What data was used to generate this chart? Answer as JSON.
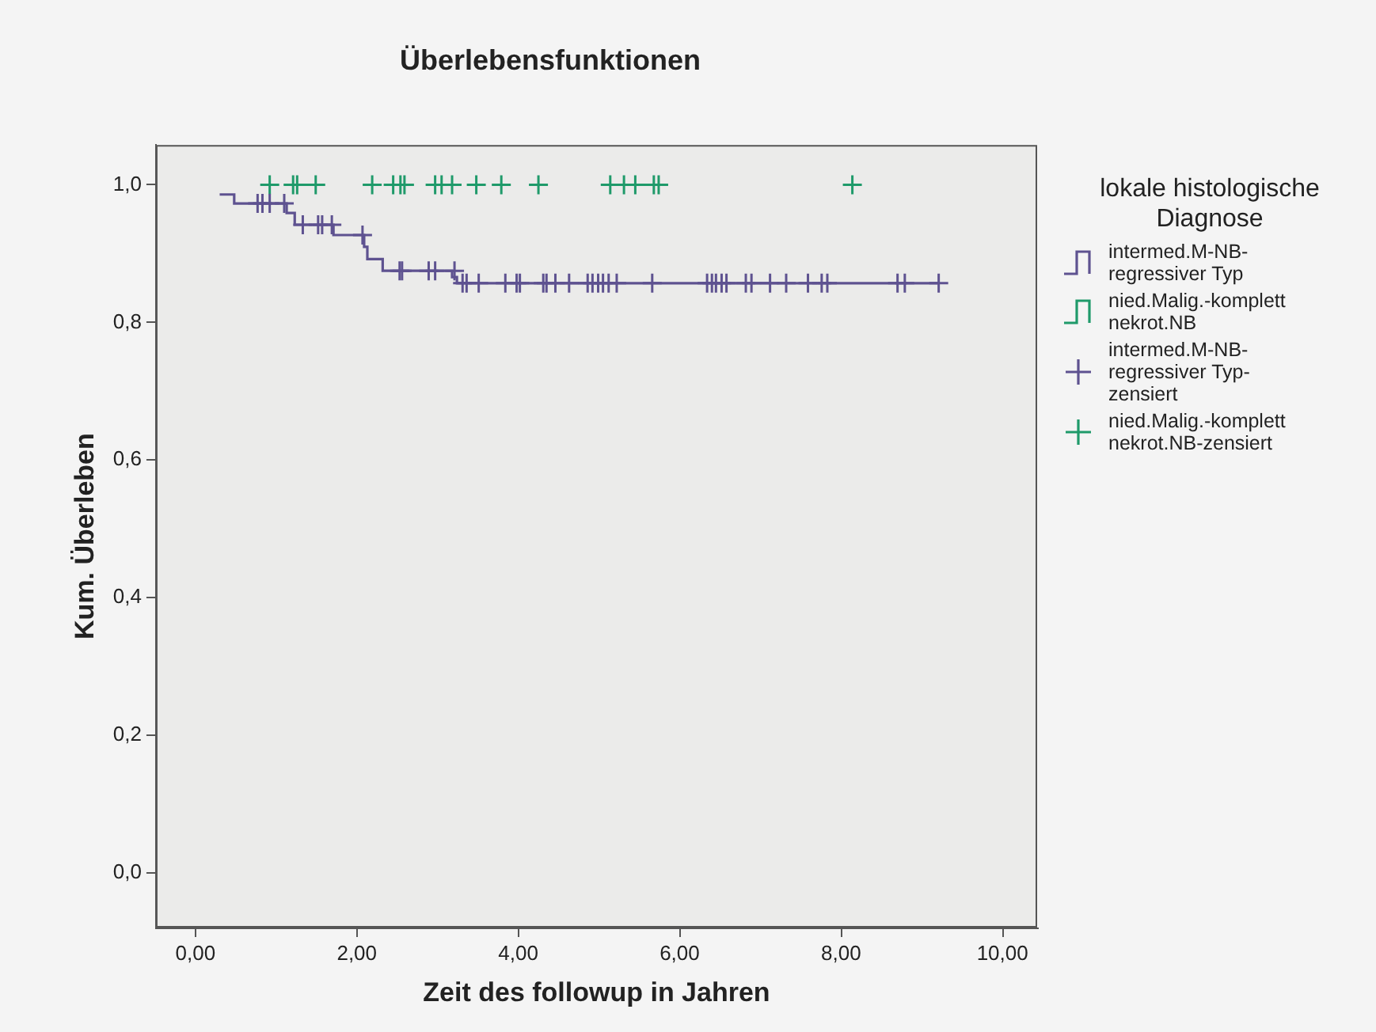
{
  "chart_data": {
    "type": "step",
    "title": "Überlebensfunktionen",
    "xlabel": "Zeit des followup in Jahren",
    "ylabel": "Kum. Überleben",
    "legend_title": "lokale histologische Diagnose",
    "legend": "right",
    "grid": false,
    "xlim": [
      -0.49,
      10.43
    ],
    "ylim": [
      -0.08,
      1.058
    ],
    "xticks": [
      {
        "value": 0,
        "label": "0,00"
      },
      {
        "value": 2,
        "label": "2,00"
      },
      {
        "value": 4,
        "label": "4,00"
      },
      {
        "value": 6,
        "label": "6,00"
      },
      {
        "value": 8,
        "label": "8,00"
      },
      {
        "value": 10,
        "label": "10,00"
      }
    ],
    "yticks": [
      {
        "value": 0,
        "label": "0,0"
      },
      {
        "value": 0.2,
        "label": "0,2"
      },
      {
        "value": 0.4,
        "label": "0,4"
      },
      {
        "value": 0.6,
        "label": "0,6"
      },
      {
        "value": 0.8,
        "label": "0,8"
      },
      {
        "value": 1,
        "label": "1,0"
      }
    ],
    "series": [
      {
        "name": "intermed.M-NB-regressiver Typ",
        "color": "#5e5290",
        "x": [
          0.3,
          0.48,
          1.13,
          1.23,
          1.71,
          2.09,
          2.13,
          2.32,
          3.18,
          3.24,
          9.21
        ],
        "values": [
          0.986,
          0.973,
          0.959,
          0.942,
          0.927,
          0.91,
          0.892,
          0.875,
          0.866,
          0.857,
          0.857
        ]
      },
      {
        "name": "nied.Malig.-komplett nekrot.NB",
        "color": "#1f9a6a"
      },
      {
        "name": "intermed.M-NB-regressiver Typ-zensiert",
        "type": "scatter",
        "marker": "cross",
        "color": "#5e5290",
        "x": [
          0.77,
          0.83,
          0.92,
          1.1,
          1.33,
          1.52,
          1.57,
          1.69,
          2.07,
          2.53,
          2.56,
          2.89,
          2.97,
          3.21,
          3.31,
          3.36,
          3.51,
          3.84,
          3.98,
          4.02,
          4.31,
          4.35,
          4.46,
          4.63,
          4.86,
          4.92,
          4.99,
          5.05,
          5.12,
          5.22,
          5.66,
          6.34,
          6.4,
          6.45,
          6.52,
          6.58,
          6.82,
          6.89,
          7.12,
          7.32,
          7.59,
          7.76,
          7.83,
          8.7,
          8.79,
          9.21
        ],
        "values": [
          0.973,
          0.973,
          0.973,
          0.973,
          0.942,
          0.942,
          0.942,
          0.942,
          0.927,
          0.875,
          0.875,
          0.875,
          0.875,
          0.875,
          0.857,
          0.857,
          0.857,
          0.857,
          0.857,
          0.857,
          0.857,
          0.857,
          0.857,
          0.857,
          0.857,
          0.857,
          0.857,
          0.857,
          0.857,
          0.857,
          0.857,
          0.857,
          0.857,
          0.857,
          0.857,
          0.857,
          0.857,
          0.857,
          0.857,
          0.857,
          0.857,
          0.857,
          0.857,
          0.857,
          0.857,
          0.857
        ]
      },
      {
        "name": "nied.Malig.-komplett nekrot.NB-zensiert",
        "type": "scatter",
        "marker": "cross",
        "color": "#1f9a6a",
        "x": [
          0.92,
          1.21,
          1.26,
          1.49,
          2.19,
          2.45,
          2.54,
          2.59,
          2.97,
          3.05,
          3.18,
          3.48,
          3.79,
          4.25,
          5.14,
          5.31,
          5.45,
          5.68,
          5.74,
          8.14
        ],
        "values": [
          1,
          1,
          1,
          1,
          1,
          1,
          1,
          1,
          1,
          1,
          1,
          1,
          1,
          1,
          1,
          1,
          1,
          1,
          1,
          1
        ]
      }
    ]
  }
}
